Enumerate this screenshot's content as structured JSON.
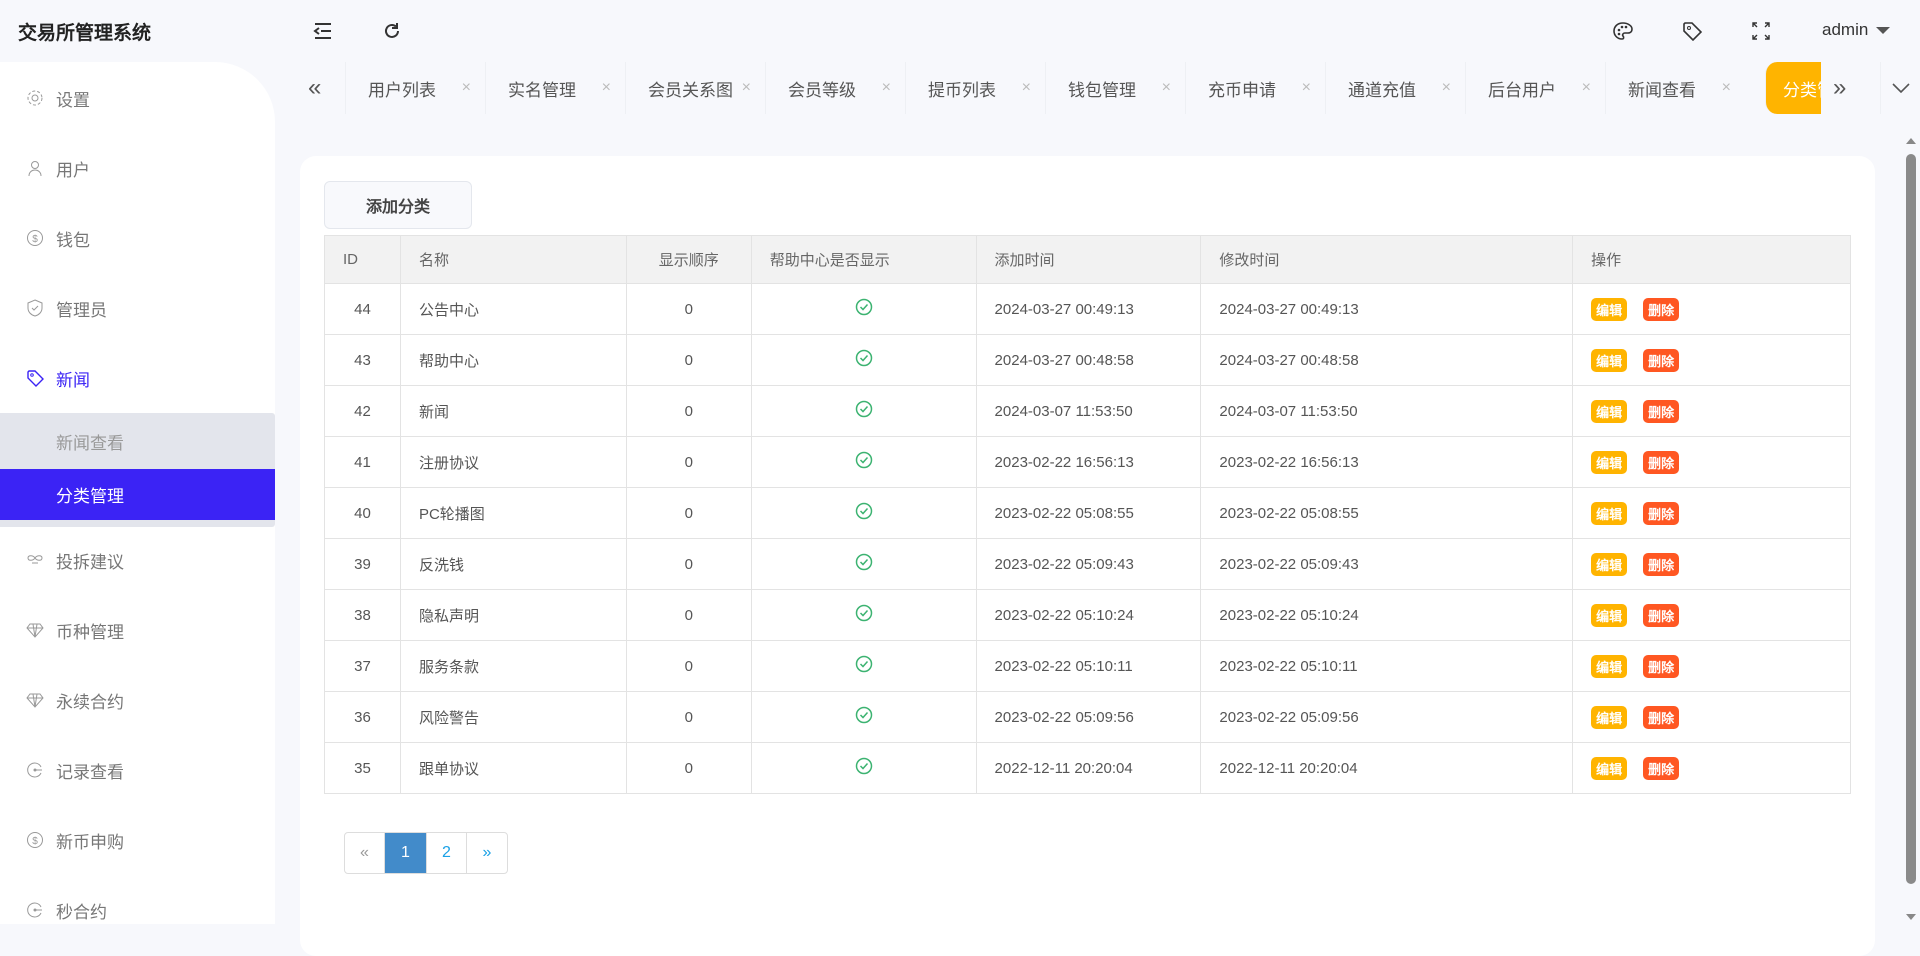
{
  "app": {
    "title": "交易所管理系统",
    "user": "admin"
  },
  "sidebar": {
    "items": [
      {
        "label": "设置",
        "icon": "gear-icon"
      },
      {
        "label": "用户",
        "icon": "user-icon"
      },
      {
        "label": "钱包",
        "icon": "dollar-icon"
      },
      {
        "label": "管理员",
        "icon": "shield-icon"
      },
      {
        "label": "新闻",
        "icon": "tag-icon",
        "active": true
      },
      {
        "label": "投拆建议",
        "icon": "infinity-icon"
      },
      {
        "label": "币种管理",
        "icon": "diamond-icon"
      },
      {
        "label": "永续合约",
        "icon": "diamond-icon"
      },
      {
        "label": "记录查看",
        "icon": "target-icon"
      },
      {
        "label": "新币申购",
        "icon": "dollar-icon"
      },
      {
        "label": "秒合约",
        "icon": "target-icon"
      }
    ],
    "submenu": [
      {
        "label": "新闻查看"
      },
      {
        "label": "分类管理",
        "selected": true
      }
    ]
  },
  "tabs": [
    "用户列表",
    "实名管理",
    "会员关系图",
    "会员等级",
    "提币列表",
    "钱包管理",
    "充币申请",
    "通道充值",
    "后台用户",
    "新闻查看"
  ],
  "active_tab": "分类管理",
  "content": {
    "add_button": "添加分类",
    "columns": [
      "ID",
      "名称",
      "显示顺序",
      "帮助中心是否显示",
      "添加时间",
      "修改时间",
      "操作"
    ],
    "edit_label": "编辑",
    "delete_label": "删除",
    "rows": [
      {
        "id": "44",
        "name": "公告中心",
        "order": "0",
        "show": true,
        "added": "2024-03-27 00:49:13",
        "modified": "2024-03-27 00:49:13"
      },
      {
        "id": "43",
        "name": "帮助中心",
        "order": "0",
        "show": true,
        "added": "2024-03-27 00:48:58",
        "modified": "2024-03-27 00:48:58"
      },
      {
        "id": "42",
        "name": "新闻",
        "order": "0",
        "show": true,
        "added": "2024-03-07 11:53:50",
        "modified": "2024-03-07 11:53:50"
      },
      {
        "id": "41",
        "name": "注册协议",
        "order": "0",
        "show": true,
        "added": "2023-02-22 16:56:13",
        "modified": "2023-02-22 16:56:13"
      },
      {
        "id": "40",
        "name": "PC轮播图",
        "order": "0",
        "show": true,
        "added": "2023-02-22 05:08:55",
        "modified": "2023-02-22 05:08:55"
      },
      {
        "id": "39",
        "name": "反洗钱",
        "order": "0",
        "show": true,
        "added": "2023-02-22 05:09:43",
        "modified": "2023-02-22 05:09:43"
      },
      {
        "id": "38",
        "name": "隐私声明",
        "order": "0",
        "show": true,
        "added": "2023-02-22 05:10:24",
        "modified": "2023-02-22 05:10:24"
      },
      {
        "id": "37",
        "name": "服务条款",
        "order": "0",
        "show": true,
        "added": "2023-02-22 05:10:11",
        "modified": "2023-02-22 05:10:11"
      },
      {
        "id": "36",
        "name": "风险警告",
        "order": "0",
        "show": true,
        "added": "2023-02-22 05:09:56",
        "modified": "2023-02-22 05:09:56"
      },
      {
        "id": "35",
        "name": "跟单协议",
        "order": "0",
        "show": true,
        "added": "2022-12-11 20:20:04",
        "modified": "2022-12-11 20:20:04"
      }
    ]
  },
  "pagination": {
    "prev": "«",
    "pages": [
      "1",
      "2"
    ],
    "current": "1",
    "next": "»"
  },
  "colors": {
    "accent": "#3b23f5",
    "tab_active": "#ffb400",
    "edit": "#ffb400",
    "delete": "#ff5722",
    "check": "#3cb371"
  }
}
